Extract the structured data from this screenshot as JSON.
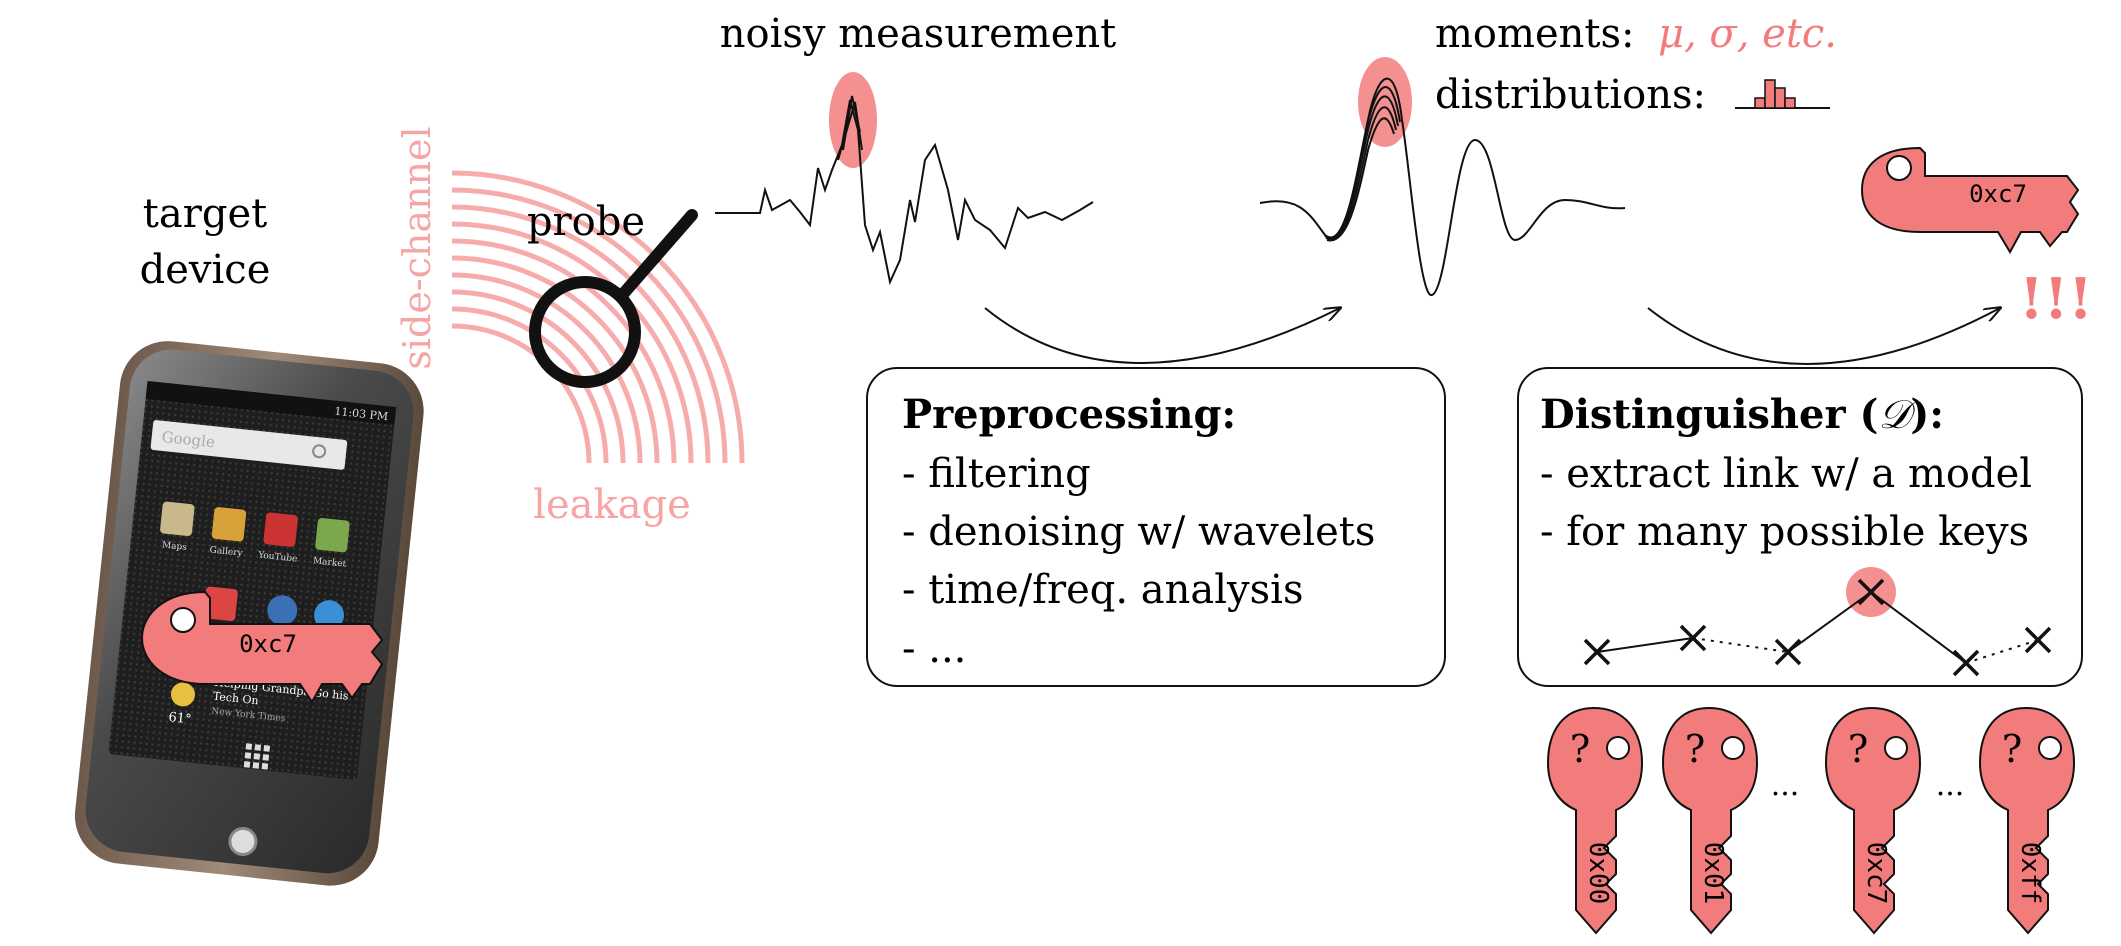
{
  "colors": {
    "accent": "#f27c7c",
    "accent_light": "#f7a4a4",
    "ink": "#111111"
  },
  "target": {
    "line1": "target",
    "line2": "device"
  },
  "phone": {
    "key_value": "0xc7",
    "app_labels": [
      "Maps",
      "Gallery",
      "YouTube",
      "Market"
    ],
    "search_placeholder": "Google",
    "news_line1": "Helping Grandpa Go his",
    "news_line2": "Tech On",
    "news_source": "New York Times",
    "temperature": "61°",
    "clock": "11:03 PM"
  },
  "probe": {
    "label": "probe",
    "side_channel": "side-channel",
    "leakage": "leakage"
  },
  "measurement": {
    "title": "noisy measurement"
  },
  "stats": {
    "moments_label": "moments:",
    "moments_value": "μ, σ, etc.",
    "distributions_label": "distributions:"
  },
  "preprocessing": {
    "heading": "Preprocessing:",
    "items": [
      "- filtering",
      "- denoising w/ wavelets",
      "- time/freq. analysis",
      "- ..."
    ]
  },
  "distinguisher": {
    "heading_main": "Distinguisher (",
    "heading_symbol": "𝒟",
    "heading_tail": "):",
    "items": [
      "- extract link w/ a model",
      "- for many possible keys"
    ]
  },
  "result": {
    "key_value": "0xc7",
    "exclaim": "!!!"
  },
  "candidate_keys": {
    "mark": "?",
    "values": [
      "0x00",
      "0x01",
      "0xc7",
      "0xff"
    ],
    "ellipsis": "..."
  }
}
